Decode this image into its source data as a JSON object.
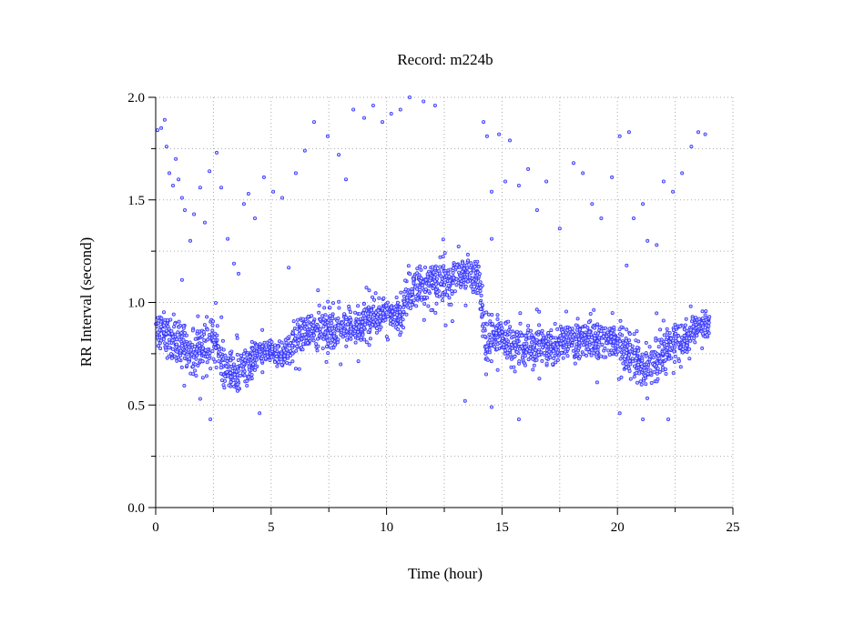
{
  "chart_data": {
    "type": "scatter",
    "title": "Record:  m224b",
    "xlabel": "Time (hour)",
    "ylabel": "RR Interval (second)",
    "xlim": [
      0,
      25
    ],
    "ylim": [
      0,
      2.0
    ],
    "xticks": [
      "0",
      "5",
      "10",
      "15",
      "20",
      "25"
    ],
    "yticks": [
      "0.0",
      "0.5",
      "1.0",
      "1.5",
      "2.0"
    ],
    "grid": true,
    "marker_color": "#3333ff",
    "trend_hour_mean_spread": [
      [
        0,
        0.88,
        0.09
      ],
      [
        0.5,
        0.85,
        0.09
      ],
      [
        1,
        0.8,
        0.1
      ],
      [
        1.5,
        0.75,
        0.1
      ],
      [
        2,
        0.76,
        0.11
      ],
      [
        2.5,
        0.82,
        0.1
      ],
      [
        3,
        0.68,
        0.1
      ],
      [
        3.5,
        0.64,
        0.09
      ],
      [
        4,
        0.7,
        0.1
      ],
      [
        4.5,
        0.75,
        0.07
      ],
      [
        5,
        0.76,
        0.06
      ],
      [
        5.5,
        0.74,
        0.06
      ],
      [
        6,
        0.8,
        0.08
      ],
      [
        6.5,
        0.86,
        0.09
      ],
      [
        7,
        0.88,
        0.1
      ],
      [
        7.5,
        0.86,
        0.09
      ],
      [
        8,
        0.87,
        0.09
      ],
      [
        8.5,
        0.88,
        0.09
      ],
      [
        9,
        0.9,
        0.09
      ],
      [
        9.5,
        0.93,
        0.08
      ],
      [
        10,
        0.96,
        0.07
      ],
      [
        10.5,
        0.92,
        0.09
      ],
      [
        11,
        1.05,
        0.1
      ],
      [
        11.5,
        1.08,
        0.1
      ],
      [
        12,
        1.12,
        0.1
      ],
      [
        12.5,
        1.1,
        0.12
      ],
      [
        13,
        1.12,
        0.1
      ],
      [
        13.5,
        1.14,
        0.09
      ],
      [
        14,
        1.12,
        0.09
      ],
      [
        14.3,
        0.8,
        0.12
      ],
      [
        15,
        0.85,
        0.1
      ],
      [
        15.5,
        0.8,
        0.1
      ],
      [
        16,
        0.78,
        0.09
      ],
      [
        16.5,
        0.8,
        0.09
      ],
      [
        17,
        0.78,
        0.09
      ],
      [
        17.5,
        0.8,
        0.09
      ],
      [
        18,
        0.82,
        0.09
      ],
      [
        18.5,
        0.82,
        0.09
      ],
      [
        19,
        0.8,
        0.1
      ],
      [
        19.5,
        0.82,
        0.1
      ],
      [
        20,
        0.82,
        0.1
      ],
      [
        20.5,
        0.75,
        0.11
      ],
      [
        21,
        0.7,
        0.11
      ],
      [
        21.5,
        0.68,
        0.12
      ],
      [
        22,
        0.78,
        0.1
      ],
      [
        22.5,
        0.8,
        0.09
      ],
      [
        23,
        0.82,
        0.08
      ],
      [
        23.5,
        0.88,
        0.06
      ],
      [
        24,
        0.9,
        0.06
      ]
    ],
    "outliers": [
      [
        0.08,
        1.84
      ],
      [
        0.24,
        1.85
      ],
      [
        0.39,
        1.89
      ],
      [
        0.47,
        1.76
      ],
      [
        0.59,
        1.63
      ],
      [
        0.75,
        1.57
      ],
      [
        0.87,
        1.7
      ],
      [
        0.99,
        1.6
      ],
      [
        1.14,
        1.51
      ],
      [
        1.26,
        1.45
      ],
      [
        1.5,
        1.3
      ],
      [
        1.66,
        1.43
      ],
      [
        1.93,
        1.56
      ],
      [
        2.13,
        1.39
      ],
      [
        2.33,
        1.64
      ],
      [
        2.64,
        1.73
      ],
      [
        2.84,
        1.56
      ],
      [
        3.12,
        1.31
      ],
      [
        3.39,
        1.19
      ],
      [
        3.59,
        1.14
      ],
      [
        3.82,
        1.48
      ],
      [
        4.02,
        1.53
      ],
      [
        4.3,
        1.41
      ],
      [
        4.69,
        1.61
      ],
      [
        5.09,
        1.54
      ],
      [
        5.48,
        1.51
      ],
      [
        5.76,
        1.17
      ],
      [
        6.07,
        1.63
      ],
      [
        6.46,
        1.74
      ],
      [
        6.86,
        1.88
      ],
      [
        7.45,
        1.81
      ],
      [
        7.93,
        1.72
      ],
      [
        8.24,
        1.6
      ],
      [
        8.56,
        1.94
      ],
      [
        9.03,
        1.9
      ],
      [
        9.42,
        1.96
      ],
      [
        9.82,
        1.88
      ],
      [
        10.2,
        1.92
      ],
      [
        10.6,
        1.94
      ],
      [
        11.0,
        2.0
      ],
      [
        11.6,
        1.98
      ],
      [
        12.1,
        1.96
      ],
      [
        14.2,
        1.88
      ],
      [
        14.35,
        1.81
      ],
      [
        14.55,
        1.54
      ],
      [
        14.87,
        1.82
      ],
      [
        15.14,
        1.59
      ],
      [
        15.34,
        1.79
      ],
      [
        15.73,
        1.57
      ],
      [
        16.13,
        1.65
      ],
      [
        16.52,
        1.45
      ],
      [
        16.92,
        1.59
      ],
      [
        17.5,
        1.36
      ],
      [
        18.1,
        1.68
      ],
      [
        18.5,
        1.63
      ],
      [
        18.9,
        1.48
      ],
      [
        19.3,
        1.41
      ],
      [
        19.76,
        1.61
      ],
      [
        20.1,
        1.81
      ],
      [
        20.5,
        1.83
      ],
      [
        20.7,
        1.41
      ],
      [
        21.1,
        1.48
      ],
      [
        21.3,
        1.3
      ],
      [
        21.7,
        1.28
      ],
      [
        22.0,
        1.59
      ],
      [
        22.4,
        1.54
      ],
      [
        22.8,
        1.63
      ],
      [
        23.2,
        1.76
      ],
      [
        23.5,
        1.83
      ],
      [
        23.8,
        1.82
      ],
      [
        2.37,
        0.43
      ],
      [
        4.5,
        0.46
      ],
      [
        13.4,
        0.52
      ],
      [
        14.55,
        0.49
      ],
      [
        15.73,
        0.43
      ],
      [
        20.1,
        0.46
      ],
      [
        21.1,
        0.43
      ],
      [
        22.2,
        0.43
      ],
      [
        20.4,
        1.18
      ],
      [
        14.55,
        1.31
      ],
      [
        1.14,
        1.11
      ],
      [
        1.93,
        0.53
      ]
    ]
  }
}
